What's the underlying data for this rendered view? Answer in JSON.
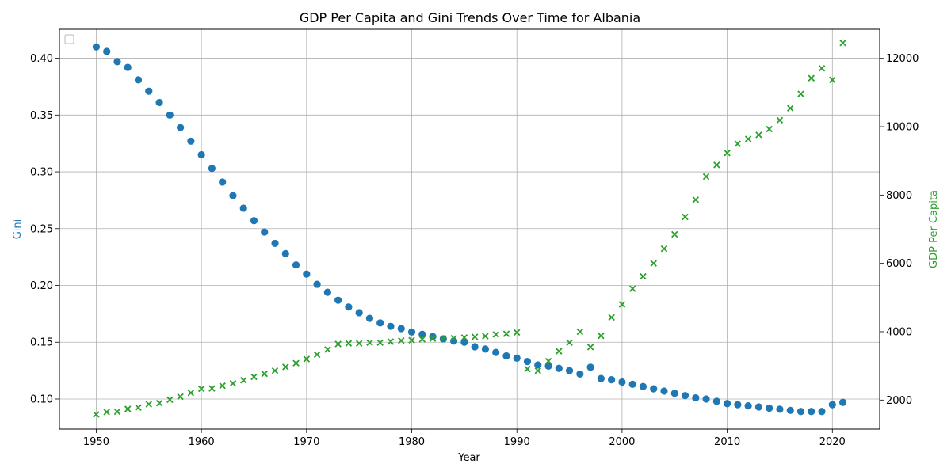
{
  "chart_data": {
    "type": "scatter",
    "title": "GDP Per Capita and Gini Trends Over Time for Albania",
    "xlabel": "Year",
    "ylabel_left": "Gini",
    "ylabel_right": "GDP Per Capita",
    "xlim": [
      1946.5,
      2024.5
    ],
    "ylim_left": [
      0.0735,
      0.4255
    ],
    "ylim_right": [
      1150,
      12850
    ],
    "x_ticks": [
      1950,
      1960,
      1970,
      1980,
      1990,
      2000,
      2010,
      2020
    ],
    "y_left_ticks": [
      0.1,
      0.15,
      0.2,
      0.25,
      0.3,
      0.35,
      0.4
    ],
    "y_left_tick_labels": [
      "0.10",
      "0.15",
      "0.20",
      "0.25",
      "0.30",
      "0.35",
      "0.40"
    ],
    "y_right_ticks": [
      2000,
      4000,
      6000,
      8000,
      10000,
      12000
    ],
    "y_right_tick_labels": [
      "2000",
      "4000",
      "6000",
      "8000",
      "10000",
      "12000"
    ],
    "grid": true,
    "legend": "upper-left (empty)",
    "colors": {
      "gini": "#1f77b4",
      "gdp": "#2ca02c"
    },
    "x": [
      1950,
      1951,
      1952,
      1953,
      1954,
      1955,
      1956,
      1957,
      1958,
      1959,
      1960,
      1961,
      1962,
      1963,
      1964,
      1965,
      1966,
      1967,
      1968,
      1969,
      1970,
      1971,
      1972,
      1973,
      1974,
      1975,
      1976,
      1977,
      1978,
      1979,
      1980,
      1981,
      1982,
      1983,
      1984,
      1985,
      1986,
      1987,
      1988,
      1989,
      1990,
      1991,
      1992,
      1993,
      1994,
      1995,
      1996,
      1997,
      1998,
      1999,
      2000,
      2001,
      2002,
      2003,
      2004,
      2005,
      2006,
      2007,
      2008,
      2009,
      2010,
      2011,
      2012,
      2013,
      2014,
      2015,
      2016,
      2017,
      2018,
      2019,
      2020,
      2021
    ],
    "series": [
      {
        "marker": "circle",
        "axis": "left",
        "values": [
          0.41,
          0.406,
          0.397,
          0.392,
          0.381,
          0.371,
          0.361,
          0.35,
          0.339,
          0.327,
          0.315,
          0.303,
          0.291,
          0.279,
          0.268,
          0.257,
          0.247,
          0.237,
          0.228,
          0.218,
          0.21,
          0.201,
          0.194,
          0.187,
          0.181,
          0.176,
          0.171,
          0.167,
          0.164,
          0.162,
          0.159,
          0.157,
          0.155,
          0.153,
          0.151,
          0.15,
          0.146,
          0.144,
          0.141,
          0.138,
          0.136,
          0.133,
          0.13,
          0.129,
          0.127,
          0.125,
          0.122,
          0.128,
          0.118,
          0.117,
          0.115,
          0.113,
          0.111,
          0.109,
          0.107,
          0.105,
          0.103,
          0.101,
          0.1,
          0.098,
          0.096,
          0.095,
          0.094,
          0.093,
          0.092,
          0.091,
          0.09,
          0.089,
          0.089,
          0.089,
          0.095,
          0.097
        ]
      },
      {
        "marker": "x",
        "axis": "right",
        "values": [
          1580,
          1650,
          1660,
          1740,
          1780,
          1880,
          1910,
          2010,
          2100,
          2210,
          2330,
          2340,
          2420,
          2490,
          2580,
          2680,
          2770,
          2860,
          2970,
          3080,
          3200,
          3330,
          3480,
          3640,
          3660,
          3660,
          3680,
          3680,
          3710,
          3740,
          3750,
          3780,
          3800,
          3800,
          3810,
          3830,
          3850,
          3870,
          3920,
          3940,
          3980,
          2910,
          2860,
          3140,
          3430,
          3680,
          4000,
          3550,
          3880,
          4420,
          4800,
          5260,
          5620,
          6000,
          6430,
          6850,
          7360,
          7860,
          8540,
          8880,
          9230,
          9500,
          9640,
          9760,
          9930,
          10190,
          10540,
          10960,
          11420,
          11710,
          11370,
          12450
        ]
      }
    ]
  }
}
